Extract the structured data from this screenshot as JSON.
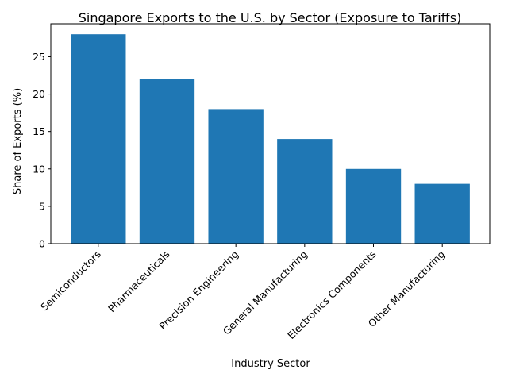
{
  "chart_data": {
    "type": "bar",
    "title": "Singapore Exports to the U.S. by Sector (Exposure to Tariffs)",
    "xlabel": "Industry Sector",
    "ylabel": "Share of Exports (%)",
    "categories": [
      "Semiconductors",
      "Pharmaceuticals",
      "Precision Engineering",
      "General Manufacturing",
      "Electronics Components",
      "Other Manufacturing"
    ],
    "values": [
      28,
      22,
      18,
      14,
      10,
      8
    ],
    "ylim": [
      0,
      29.4
    ],
    "yticks": [
      0,
      5,
      10,
      15,
      20,
      25
    ],
    "bar_color": "#1f77b4",
    "grid": false,
    "legend": "none"
  }
}
